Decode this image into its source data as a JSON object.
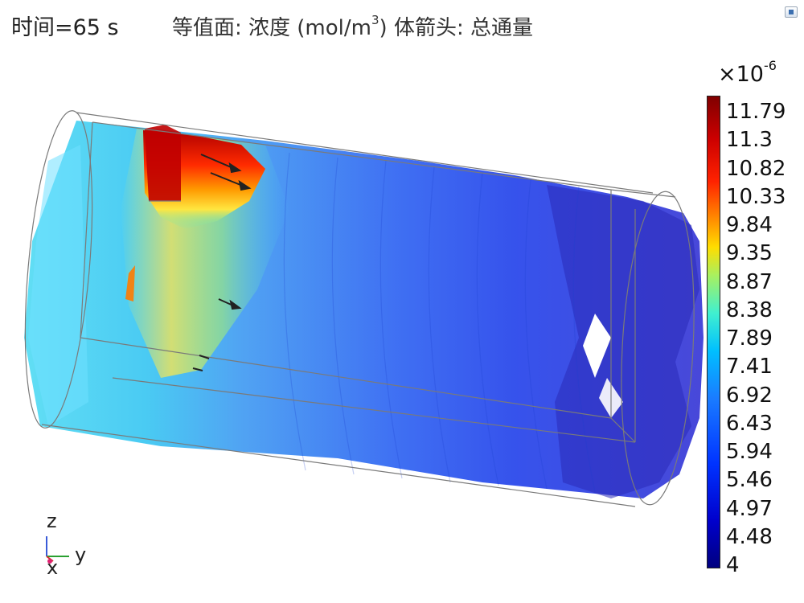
{
  "header": {
    "time_label": "时间=65 s",
    "title_prefix": "等值面: 浓度 (mol/m",
    "title_sup": "3",
    "title_suffix": ")  体箭头: 总通量"
  },
  "colorbar": {
    "multiplier_base": "×10",
    "multiplier_exp": "-6",
    "ticks": [
      "11.79",
      "11.3",
      "10.82",
      "10.33",
      "9.84",
      "9.35",
      "8.87",
      "8.38",
      "7.89",
      "7.41",
      "6.92",
      "6.43",
      "5.94",
      "5.46",
      "4.97",
      "4.48",
      "4"
    ],
    "colors": [
      "#800000",
      "#ff2200",
      "#ffdd00",
      "#40f0d0",
      "#00bfff",
      "#1a7cff",
      "#0033ff",
      "#00007f"
    ]
  },
  "axes": {
    "z": "z",
    "y": "y",
    "x": "x"
  }
}
